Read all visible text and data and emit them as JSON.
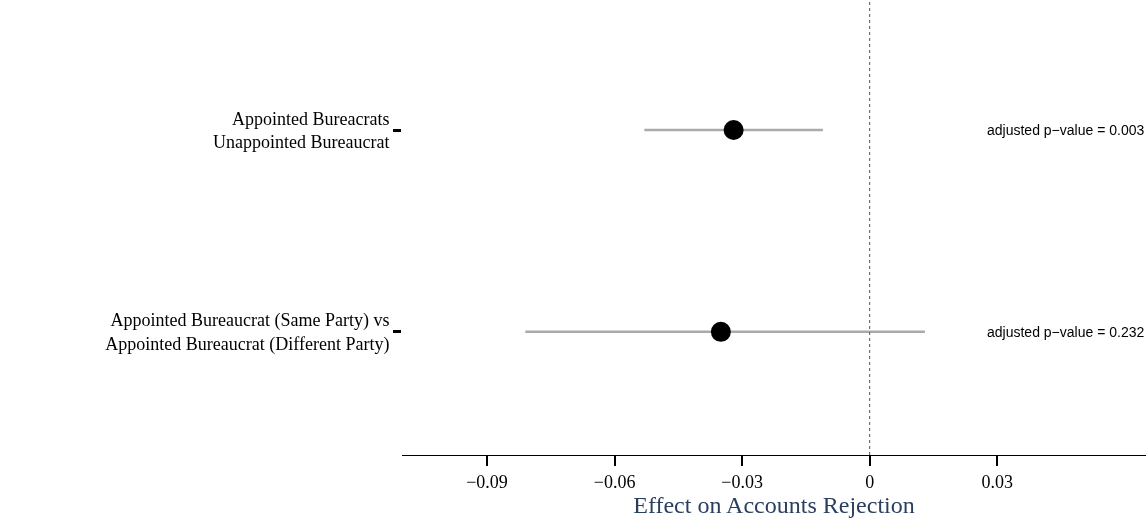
{
  "chart_data": {
    "type": "scatter",
    "orientation": "horizontal",
    "xlabel": "Effect on Accounts Rejection",
    "categories": [
      "Appointed Bureacrats\nUnappointed Bureaucrat",
      "Appointed Bureaucrat (Same Party) vs\nAppointed Bureaucrat (Different Party)"
    ],
    "values": [
      -0.032,
      -0.035
    ],
    "errors": [
      [
        -0.053,
        -0.011
      ],
      [
        -0.081,
        0.013
      ]
    ],
    "color": "#000000",
    "marker": "circle",
    "xlim": [
      -0.11,
      0.065
    ],
    "xticks": [
      {
        "value": -0.09,
        "label": "−0.09"
      },
      {
        "value": -0.06,
        "label": "−0.06"
      },
      {
        "value": -0.03,
        "label": "−0.03"
      },
      0,
      0.03
    ],
    "ref_lines": [
      {
        "axis": "x",
        "value": 0,
        "color": "#555555",
        "line_style": "dotted"
      }
    ],
    "annotations": [
      "adjusted p−value = 0.003",
      "adjusted p−value = 0.232"
    ]
  }
}
